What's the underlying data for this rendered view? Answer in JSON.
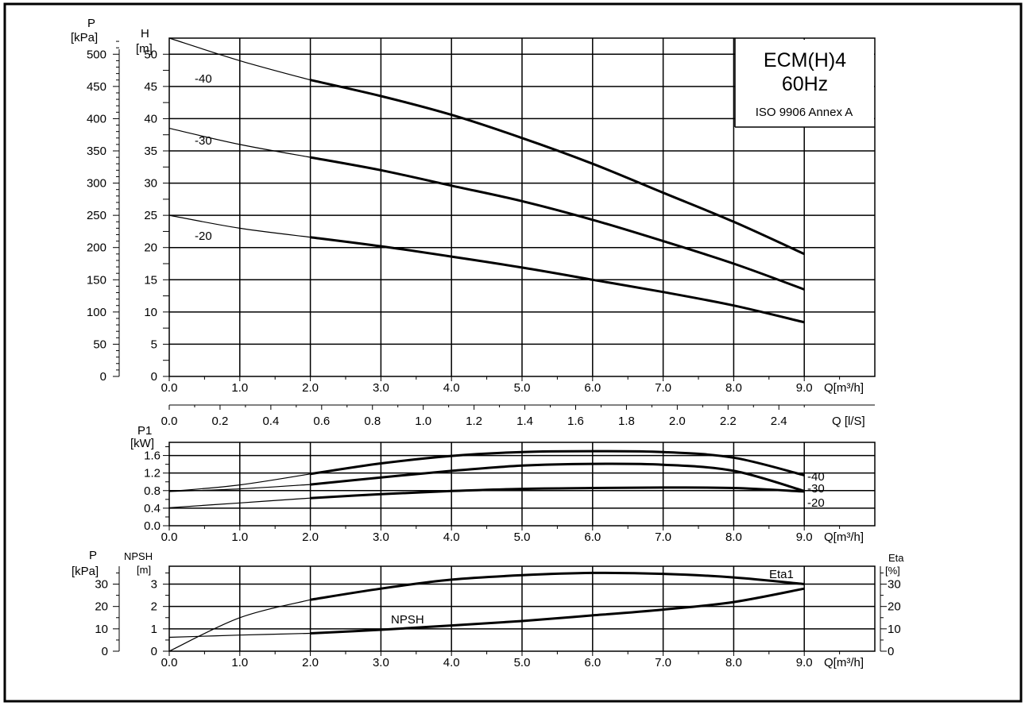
{
  "chart_data": [
    {
      "id": "head",
      "type": "line",
      "title": "ECM(H)4",
      "subtitle": "60Hz",
      "note": "ISO 9906 Annex A",
      "y_left_outer": {
        "label_top": "P",
        "label_unit": "[kPa]",
        "ticks": [
          0,
          50,
          100,
          150,
          200,
          250,
          300,
          350,
          400,
          450,
          500
        ],
        "range": [
          0,
          525
        ]
      },
      "y_left": {
        "label_top": "H",
        "label_unit": "[m]",
        "ticks": [
          0,
          5,
          10,
          15,
          20,
          25,
          30,
          35,
          40,
          45,
          50
        ],
        "range": [
          0,
          52.5
        ]
      },
      "x": {
        "label": "Q[m³/h]",
        "ticks": [
          "0.0",
          "1.0",
          "2.0",
          "3.0",
          "4.0",
          "5.0",
          "6.0",
          "7.0",
          "8.0",
          "9.0"
        ],
        "range": [
          0,
          10
        ]
      },
      "x_secondary": {
        "label": "Q [l/S]",
        "ticks": [
          "0.0",
          "0.2",
          "0.4",
          "0.6",
          "0.8",
          "1.0",
          "1.2",
          "1.4",
          "1.6",
          "1.8",
          "2.0",
          "2.2",
          "2.4"
        ]
      },
      "series": [
        {
          "name": "-40",
          "thin": [
            [
              0,
              52.5
            ],
            [
              1,
              49
            ],
            [
              2,
              46
            ]
          ],
          "bold": [
            [
              2,
              46
            ],
            [
              3,
              43.5
            ],
            [
              4,
              40.6
            ],
            [
              5,
              37
            ],
            [
              6,
              33
            ],
            [
              7,
              28.5
            ],
            [
              8,
              24
            ],
            [
              9,
              19
            ]
          ]
        },
        {
          "name": "-30",
          "thin": [
            [
              0,
              38.5
            ],
            [
              1,
              36
            ],
            [
              2,
              34
            ]
          ],
          "bold": [
            [
              2,
              34
            ],
            [
              3,
              32
            ],
            [
              4,
              29.6
            ],
            [
              5,
              27.2
            ],
            [
              6,
              24.3
            ],
            [
              7,
              21
            ],
            [
              8,
              17.5
            ],
            [
              9,
              13.5
            ]
          ]
        },
        {
          "name": "-20",
          "thin": [
            [
              0,
              25
            ],
            [
              1,
              23
            ],
            [
              2,
              21.6
            ]
          ],
          "bold": [
            [
              2,
              21.6
            ],
            [
              3,
              20.2
            ],
            [
              4,
              18.6
            ],
            [
              5,
              16.9
            ],
            [
              6,
              15
            ],
            [
              7,
              13.1
            ],
            [
              8,
              11
            ],
            [
              9,
              8.4
            ]
          ]
        }
      ]
    },
    {
      "id": "power",
      "type": "line",
      "y_left": {
        "label_top": "P1",
        "label_unit": "[kW]",
        "ticks": [
          "0.0",
          "0.4",
          "0.8",
          "1.2",
          "1.6"
        ],
        "range": [
          0,
          1.9
        ]
      },
      "x": {
        "label": "Q[m³/h]",
        "ticks": [
          "0.0",
          "1.0",
          "2.0",
          "3.0",
          "4.0",
          "5.0",
          "6.0",
          "7.0",
          "8.0",
          "9.0"
        ],
        "range": [
          0,
          10
        ]
      },
      "series": [
        {
          "name": "-40",
          "thin": [
            [
              0,
              0.78
            ],
            [
              1,
              0.93
            ],
            [
              2,
              1.18
            ]
          ],
          "bold": [
            [
              2,
              1.18
            ],
            [
              3,
              1.42
            ],
            [
              4,
              1.59
            ],
            [
              5,
              1.68
            ],
            [
              6,
              1.7
            ],
            [
              7,
              1.68
            ],
            [
              8,
              1.55
            ],
            [
              9,
              1.15
            ]
          ]
        },
        {
          "name": "-30",
          "thin": [
            [
              0,
              0.78
            ],
            [
              1,
              0.84
            ],
            [
              2,
              0.94
            ]
          ],
          "bold": [
            [
              2,
              0.94
            ],
            [
              3,
              1.1
            ],
            [
              4,
              1.25
            ],
            [
              5,
              1.37
            ],
            [
              6,
              1.41
            ],
            [
              7,
              1.39
            ],
            [
              8,
              1.25
            ],
            [
              9,
              0.79
            ]
          ]
        },
        {
          "name": "-20",
          "thin": [
            [
              0,
              0.41
            ],
            [
              1,
              0.52
            ],
            [
              2,
              0.63
            ]
          ],
          "bold": [
            [
              2,
              0.63
            ],
            [
              3,
              0.72
            ],
            [
              4,
              0.79
            ],
            [
              5,
              0.84
            ],
            [
              6,
              0.86
            ],
            [
              7,
              0.87
            ],
            [
              8,
              0.86
            ],
            [
              9,
              0.78
            ]
          ]
        }
      ]
    },
    {
      "id": "npsh",
      "type": "line",
      "y_left_outer": {
        "label_top": "P",
        "label_unit": "[kPa]",
        "ticks": [
          0,
          10,
          20,
          30
        ],
        "range": [
          0,
          38
        ]
      },
      "y_left": {
        "label_top": "NPSH",
        "label_unit": "[m]",
        "ticks": [
          0,
          1,
          2,
          3
        ],
        "range": [
          0,
          3.8
        ]
      },
      "y_right": {
        "label_top": "Eta",
        "label_unit": "[%]",
        "ticks": [
          0,
          10,
          20,
          30
        ],
        "range": [
          0,
          38
        ]
      },
      "x": {
        "label": "Q[m³/h]",
        "ticks": [
          "0.0",
          "1.0",
          "2.0",
          "3.0",
          "4.0",
          "5.0",
          "6.0",
          "7.0",
          "8.0",
          "9.0"
        ],
        "range": [
          0,
          10
        ]
      },
      "series": [
        {
          "name": "Eta1",
          "axis": "right",
          "thin": [
            [
              0,
              0
            ],
            [
              1,
              15
            ],
            [
              2,
              23
            ]
          ],
          "bold": [
            [
              2,
              23
            ],
            [
              3,
              28
            ],
            [
              4,
              32
            ],
            [
              5,
              34
            ],
            [
              6,
              35
            ],
            [
              7,
              34.6
            ],
            [
              8,
              33
            ],
            [
              9,
              30
            ]
          ]
        },
        {
          "name": "NPSH",
          "axis": "left",
          "thin": [
            [
              0,
              0.62
            ],
            [
              1,
              0.72
            ],
            [
              2,
              0.8
            ]
          ],
          "bold": [
            [
              2,
              0.8
            ],
            [
              3,
              0.96
            ],
            [
              4,
              1.15
            ],
            [
              5,
              1.35
            ],
            [
              6,
              1.6
            ],
            [
              7,
              1.86
            ],
            [
              8,
              2.2
            ],
            [
              9,
              2.8
            ]
          ]
        }
      ]
    }
  ]
}
